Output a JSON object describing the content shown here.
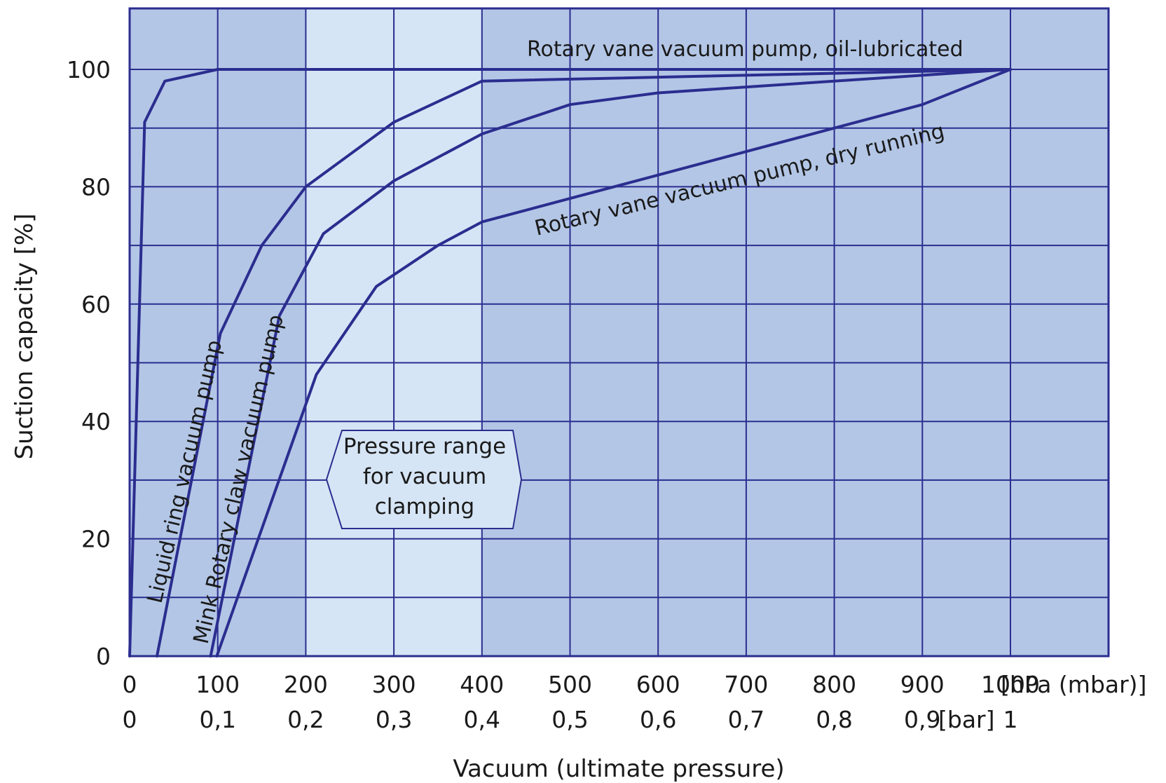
{
  "chart_data": {
    "type": "line",
    "xlabel": "Vacuum (ultimate pressure)",
    "ylabel": "Suction capacity [%]",
    "x_unit_primary": "[hPa (mbar)]",
    "x_unit_secondary": "[bar]",
    "xlim": [
      0,
      1000
    ],
    "ylim": [
      0,
      100
    ],
    "x_ticks_primary": [
      "0",
      "100",
      "200",
      "300",
      "400",
      "500",
      "600",
      "700",
      "800",
      "900",
      "1000"
    ],
    "x_ticks_secondary": [
      "0",
      "0,1",
      "0,2",
      "0,3",
      "0,4",
      "0,5",
      "0,6",
      "0,7",
      "0,8",
      "0,9",
      "1"
    ],
    "y_ticks": [
      "0",
      "20",
      "40",
      "60",
      "80",
      "100"
    ],
    "grid": true,
    "highlight_band": {
      "x_range": [
        200,
        400
      ],
      "label_lines": [
        "Pressure range",
        "for vacuum",
        "clamping"
      ]
    },
    "series": [
      {
        "name": "Rotary vane vacuum pump, oil-lubricated",
        "points": [
          [
            0,
            0
          ],
          [
            17,
            91
          ],
          [
            40,
            98
          ],
          [
            100,
            100
          ],
          [
            1000,
            100
          ]
        ]
      },
      {
        "name": "Liquid ring vacuum pump",
        "points": [
          [
            31,
            0
          ],
          [
            103,
            55
          ],
          [
            150,
            70
          ],
          [
            200,
            80
          ],
          [
            300,
            91
          ],
          [
            400,
            98
          ],
          [
            1000,
            100
          ]
        ]
      },
      {
        "name": "Mink Rotary claw vacuum pump",
        "points": [
          [
            92,
            0
          ],
          [
            170,
            58
          ],
          [
            220,
            72
          ],
          [
            300,
            81
          ],
          [
            400,
            89
          ],
          [
            500,
            94
          ],
          [
            600,
            96
          ],
          [
            1000,
            100
          ]
        ]
      },
      {
        "name": "Rotary vane vacuum pump, dry running",
        "points": [
          [
            99,
            0
          ],
          [
            212,
            48
          ],
          [
            280,
            63
          ],
          [
            350,
            70
          ],
          [
            400,
            74
          ],
          [
            500,
            78
          ],
          [
            600,
            82
          ],
          [
            700,
            86
          ],
          [
            800,
            90
          ],
          [
            900,
            94
          ],
          [
            1000,
            100
          ]
        ]
      }
    ]
  }
}
